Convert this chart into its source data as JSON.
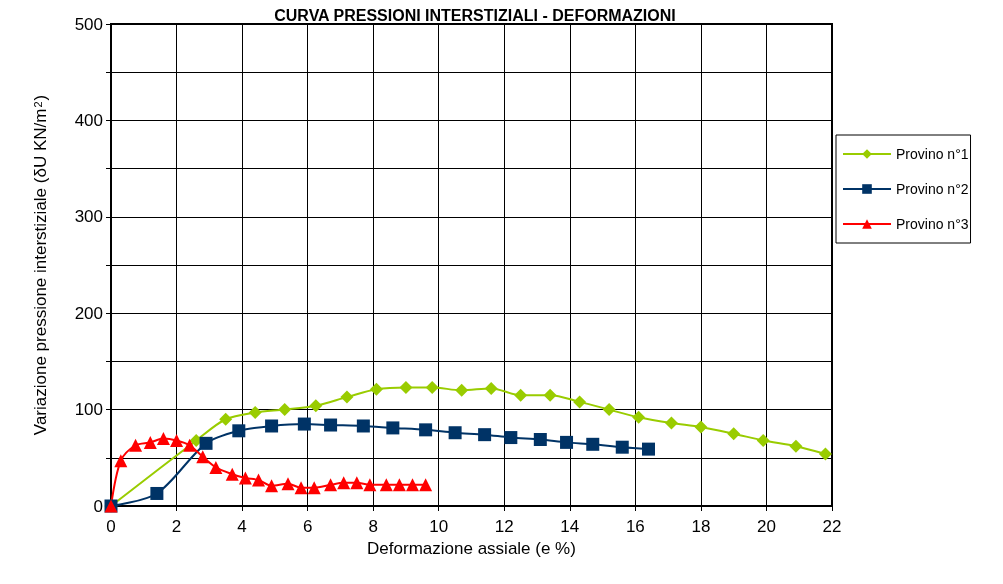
{
  "chart_data": {
    "type": "line",
    "title": "CURVA PRESSIONI INTERSTIZIALI - DEFORMAZIONI",
    "xlabel": "Deformazione assiale (e %)",
    "ylabel": "Variazione pressione interstiziale (δU KN/m$^{2}$)",
    "xlim": [
      0,
      22
    ],
    "xticks": [
      0,
      2,
      4,
      6,
      8,
      10,
      12,
      14,
      16,
      18,
      20,
      22
    ],
    "ylim": [
      0,
      500
    ],
    "yticks": [
      0,
      {
        "value": 50,
        "label": null
      },
      100,
      {
        "value": 150,
        "label": null
      },
      200,
      {
        "value": 250,
        "label": null
      },
      300,
      {
        "value": 350,
        "label": null
      },
      400,
      {
        "value": 450,
        "label": null
      },
      500
    ],
    "grid": true,
    "legend": "right",
    "series": [
      {
        "name": "Provino n°1",
        "color": "#99cc00",
        "marker": "diamond",
        "x": [
          0,
          2.6,
          3.5,
          4.4,
          5.3,
          6.25,
          7.2,
          8.1,
          9.0,
          9.8,
          10.7,
          11.6,
          12.5,
          13.4,
          14.3,
          15.2,
          16.1,
          17.1,
          18.0,
          19.0,
          19.9,
          20.9,
          21.8
        ],
        "values": [
          0,
          68,
          90,
          97,
          100,
          104,
          113,
          121,
          123,
          123,
          120,
          122,
          115,
          115,
          108,
          100,
          92,
          86,
          82,
          75,
          68,
          62,
          54
        ]
      },
      {
        "name": "Provino n°2",
        "color": "#003366",
        "marker": "square",
        "x": [
          0,
          1.4,
          2.9,
          3.9,
          4.9,
          5.9,
          6.7,
          7.7,
          8.6,
          9.6,
          10.5,
          11.4,
          12.2,
          13.1,
          13.9,
          14.7,
          15.6,
          16.4
        ],
        "values": [
          0,
          13,
          65,
          78,
          83,
          85,
          84,
          83,
          81,
          79,
          76,
          74,
          71,
          69,
          66,
          64,
          61,
          59
        ]
      },
      {
        "name": "Provino n°3",
        "color": "#ff0000",
        "marker": "triangle",
        "x": [
          0,
          0.3,
          0.75,
          1.2,
          1.6,
          2.0,
          2.4,
          2.8,
          3.2,
          3.7,
          4.1,
          4.5,
          4.9,
          5.4,
          5.8,
          6.2,
          6.7,
          7.1,
          7.5,
          7.9,
          8.4,
          8.8,
          9.2,
          9.6
        ],
        "values": [
          0,
          47,
          63,
          66,
          70,
          68,
          63,
          51,
          40,
          33,
          29,
          27,
          21,
          23,
          19,
          19,
          22,
          24,
          24,
          22,
          22,
          22,
          22,
          22
        ]
      }
    ]
  }
}
